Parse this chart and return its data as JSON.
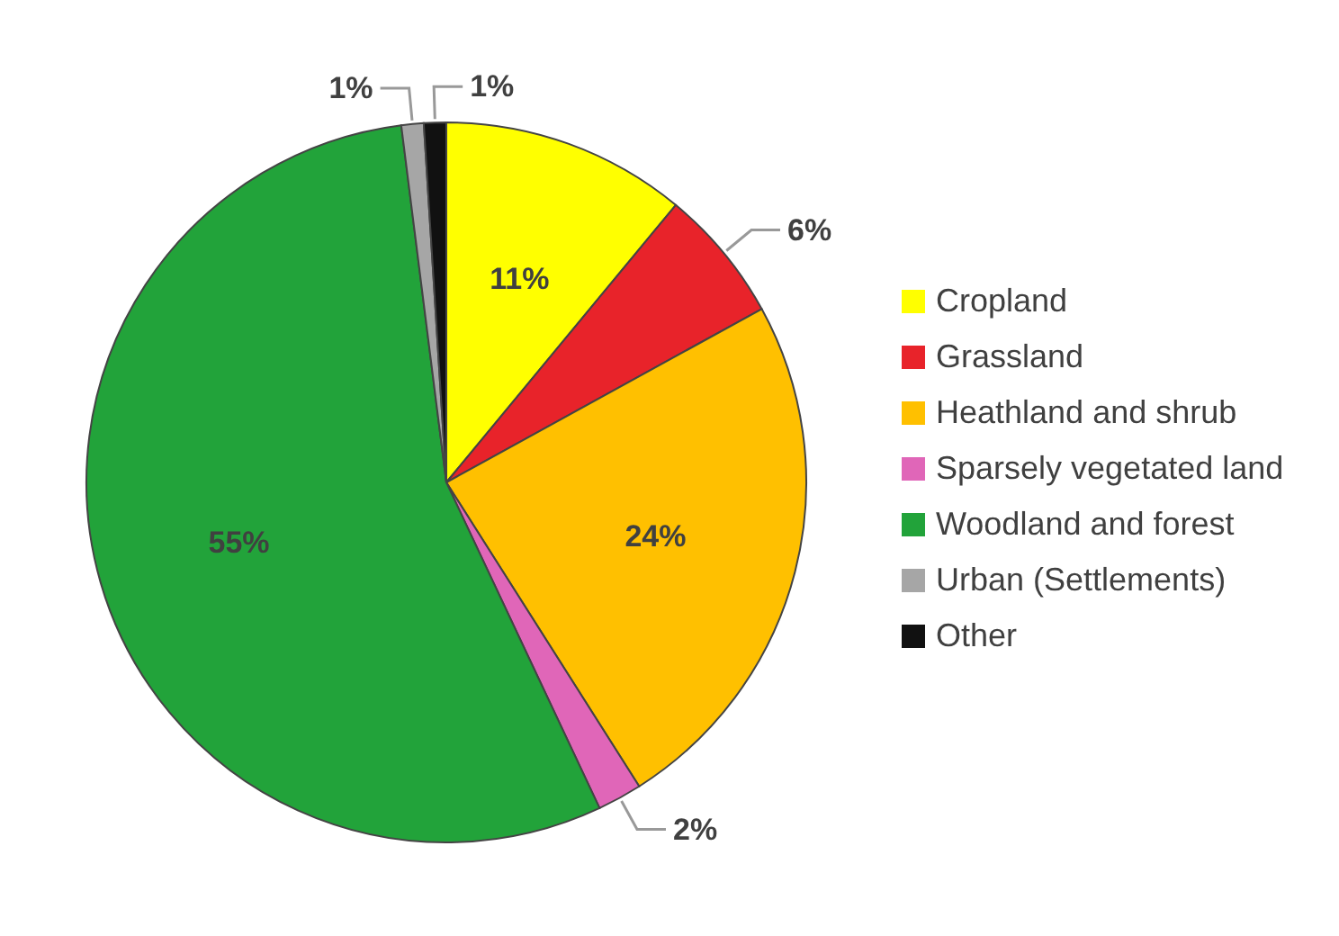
{
  "chart_data": {
    "type": "pie",
    "categories": [
      "Cropland",
      "Grassland",
      "Heathland and shrub",
      "Sparsely vegetated land",
      "Woodland and forest",
      "Urban (Settlements)",
      "Other"
    ],
    "values": [
      11,
      6,
      24,
      2,
      55,
      1,
      1
    ],
    "colors": [
      "#ffff00",
      "#e8232a",
      "#ffc000",
      "#e066b8",
      "#22a33a",
      "#a6a6a6",
      "#111111"
    ],
    "value_labels": [
      "11%",
      "6%",
      "24%",
      "2%",
      "55%",
      "1%",
      "1%"
    ],
    "legend": "right"
  }
}
